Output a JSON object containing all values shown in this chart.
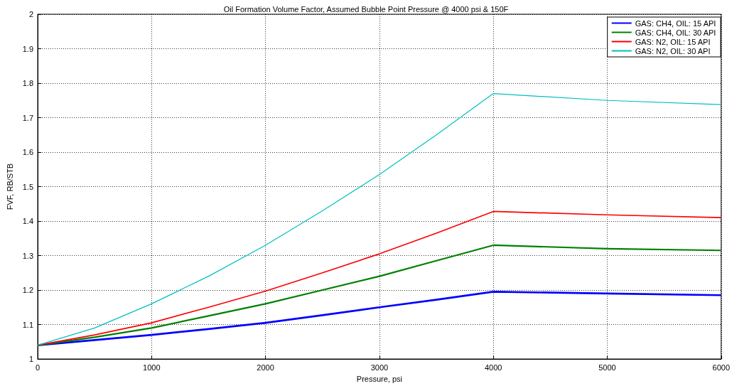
{
  "chart_data": {
    "type": "line",
    "title": "Oil Formation Volume Factor, Assumed Bubble Point Pressure @ 4000 psi & 150F",
    "xlabel": "Pressure, psi",
    "ylabel": "FVF, RB/STB",
    "x": [
      0,
      500,
      1000,
      1500,
      2000,
      2500,
      3000,
      3500,
      4000,
      5000,
      6000
    ],
    "series": [
      {
        "name": "GAS: CH4, OIL: 15 API",
        "color": "#0000ff",
        "values": [
          1.04,
          1.055,
          1.07,
          1.087,
          1.105,
          1.127,
          1.15,
          1.172,
          1.195,
          1.19,
          1.185
        ]
      },
      {
        "name": "GAS: CH4, OIL: 30 API",
        "color": "#008000",
        "values": [
          1.04,
          1.063,
          1.09,
          1.125,
          1.16,
          1.2,
          1.24,
          1.285,
          1.33,
          1.32,
          1.315
        ]
      },
      {
        "name": "GAS: N2, OIL: 15 API",
        "color": "#ff0000",
        "values": [
          1.04,
          1.07,
          1.105,
          1.15,
          1.197,
          1.25,
          1.305,
          1.365,
          1.428,
          1.418,
          1.41
        ]
      },
      {
        "name": "GAS: N2, OIL: 30 API",
        "color": "#00bfbf",
        "values": [
          1.04,
          1.09,
          1.16,
          1.24,
          1.33,
          1.43,
          1.535,
          1.65,
          1.77,
          1.75,
          1.738
        ]
      }
    ],
    "xlim": [
      0,
      6000
    ],
    "xticks": [
      0,
      1000,
      2000,
      3000,
      4000,
      5000,
      6000
    ],
    "ylim": [
      1,
      2
    ],
    "yticks": [
      1,
      1.1,
      1.2,
      1.3,
      1.4,
      1.5,
      1.6,
      1.7,
      1.8,
      1.9,
      2
    ],
    "grid": true,
    "legend": "top right",
    "marker": "none",
    "line_style": "solid"
  }
}
